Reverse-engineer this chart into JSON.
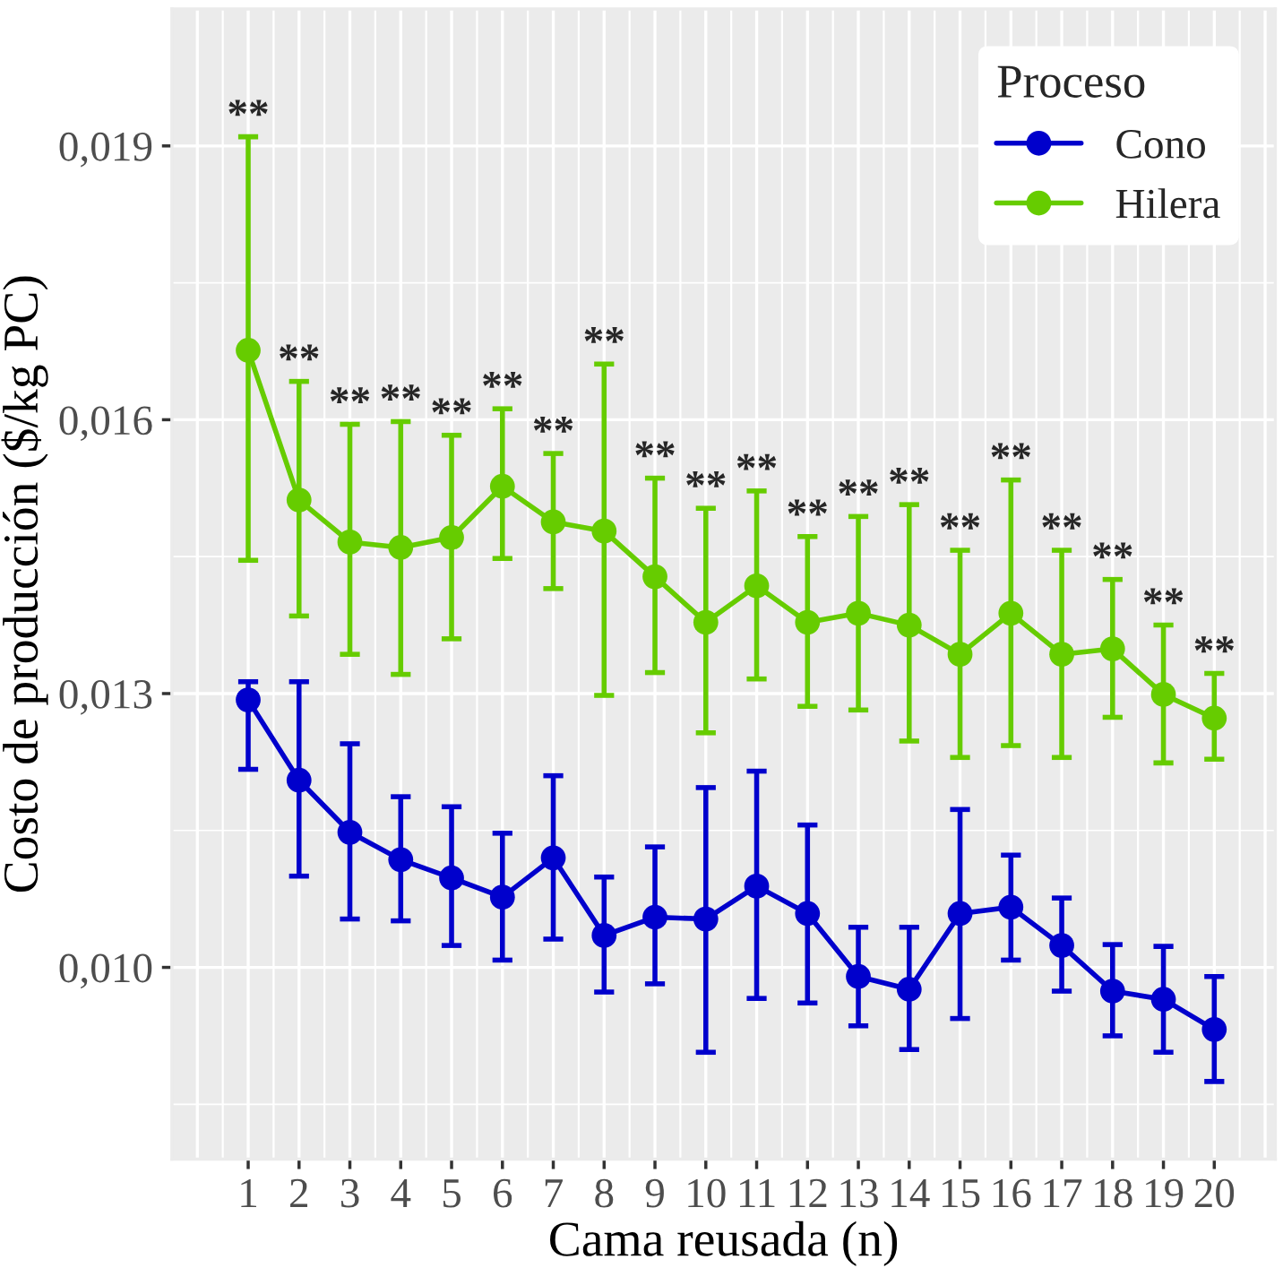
{
  "chart_data": {
    "type": "line",
    "xlabel": "Cama reusada (n)",
    "ylabel": "Costo de producción ($/kg PC)",
    "legend_title": "Proceso",
    "x": [
      1,
      2,
      3,
      4,
      5,
      6,
      7,
      8,
      9,
      10,
      11,
      12,
      13,
      14,
      15,
      16,
      17,
      18,
      19,
      20
    ],
    "xlim": [
      -0.5,
      21.2
    ],
    "xticks": [
      1,
      2,
      3,
      4,
      5,
      6,
      7,
      8,
      9,
      10,
      11,
      12,
      13,
      14,
      15,
      16,
      17,
      18,
      19,
      20
    ],
    "ylim": [
      0.0079,
      0.0205
    ],
    "yticks": [
      {
        "value": 0.01,
        "label": "0,010"
      },
      {
        "value": 0.013,
        "label": "0,013"
      },
      {
        "value": 0.016,
        "label": "0,016"
      },
      {
        "value": 0.019,
        "label": "0,019"
      }
    ],
    "grid": true,
    "legend": "top right",
    "marker": "circle",
    "line_style": "solid",
    "series": [
      {
        "name": "Cono",
        "color": "#0000cc",
        "values": [
          0.01293,
          0.01205,
          0.01148,
          0.01118,
          0.01098,
          0.01077,
          0.0112,
          0.01035,
          0.01055,
          0.01053,
          0.01089,
          0.01059,
          0.0099,
          0.00976,
          0.01059,
          0.01066,
          0.01024,
          0.00974,
          0.00965,
          0.00932
        ],
        "errors": [
          [
            0.01217,
            0.01313
          ],
          [
            0.011,
            0.01313
          ],
          [
            0.01053,
            0.01245
          ],
          [
            0.01051,
            0.01187
          ],
          [
            0.01024,
            0.01176
          ],
          [
            0.01008,
            0.01147
          ],
          [
            0.01031,
            0.0121
          ],
          [
            0.00973,
            0.01099
          ],
          [
            0.00982,
            0.01132
          ],
          [
            0.00907,
            0.01197
          ],
          [
            0.00966,
            0.01215
          ],
          [
            0.00961,
            0.01156
          ],
          [
            0.00936,
            0.01044
          ],
          [
            0.0091,
            0.01044
          ],
          [
            0.00944,
            0.01173
          ],
          [
            0.01008,
            0.01123
          ],
          [
            0.00974,
            0.01076
          ],
          [
            0.00925,
            0.01025
          ],
          [
            0.00907,
            0.01023
          ],
          [
            0.00875,
            0.0099
          ]
        ]
      },
      {
        "name": "Hilera",
        "color": "#66cc00",
        "values": [
          0.01676,
          0.01512,
          0.01466,
          0.0146,
          0.01471,
          0.01527,
          0.01488,
          0.01478,
          0.01428,
          0.01378,
          0.01418,
          0.01378,
          0.01388,
          0.01375,
          0.01343,
          0.01388,
          0.01343,
          0.01349,
          0.01299,
          0.01273
        ],
        "errors": [
          [
            0.01446,
            0.0191
          ],
          [
            0.01385,
            0.01642
          ],
          [
            0.01343,
            0.01595
          ],
          [
            0.01321,
            0.01598
          ],
          [
            0.0136,
            0.01583
          ],
          [
            0.01448,
            0.01612
          ],
          [
            0.01415,
            0.01563
          ],
          [
            0.01298,
            0.01661
          ],
          [
            0.01323,
            0.01536
          ],
          [
            0.01257,
            0.01503
          ],
          [
            0.01316,
            0.01522
          ],
          [
            0.01286,
            0.01472
          ],
          [
            0.01282,
            0.01494
          ],
          [
            0.01248,
            0.01507
          ],
          [
            0.0123,
            0.01457
          ],
          [
            0.01243,
            0.01534
          ],
          [
            0.0123,
            0.01457
          ],
          [
            0.01274,
            0.01425
          ],
          [
            0.01224,
            0.01375
          ],
          [
            0.01228,
            0.01322
          ]
        ]
      }
    ],
    "annotations": [
      {
        "text": "**",
        "x": 1,
        "y": 0.0191
      },
      {
        "text": "**",
        "x": 2,
        "y": 0.01642
      },
      {
        "text": "**",
        "x": 3,
        "y": 0.01595
      },
      {
        "text": "**",
        "x": 4,
        "y": 0.01598
      },
      {
        "text": "**",
        "x": 5,
        "y": 0.01583
      },
      {
        "text": "**",
        "x": 6,
        "y": 0.01612
      },
      {
        "text": "**",
        "x": 7,
        "y": 0.01563
      },
      {
        "text": "**",
        "x": 8,
        "y": 0.01661
      },
      {
        "text": "**",
        "x": 9,
        "y": 0.01536
      },
      {
        "text": "**",
        "x": 10,
        "y": 0.01503
      },
      {
        "text": "**",
        "x": 11,
        "y": 0.01522
      },
      {
        "text": "**",
        "x": 12,
        "y": 0.01472
      },
      {
        "text": "**",
        "x": 13,
        "y": 0.01494
      },
      {
        "text": "**",
        "x": 14,
        "y": 0.01507
      },
      {
        "text": "**",
        "x": 15,
        "y": 0.01457
      },
      {
        "text": "**",
        "x": 16,
        "y": 0.01534
      },
      {
        "text": "**",
        "x": 17,
        "y": 0.01457
      },
      {
        "text": "**",
        "x": 18,
        "y": 0.01425
      },
      {
        "text": "**",
        "x": 19,
        "y": 0.01375
      },
      {
        "text": "**",
        "x": 20,
        "y": 0.01322
      }
    ]
  }
}
